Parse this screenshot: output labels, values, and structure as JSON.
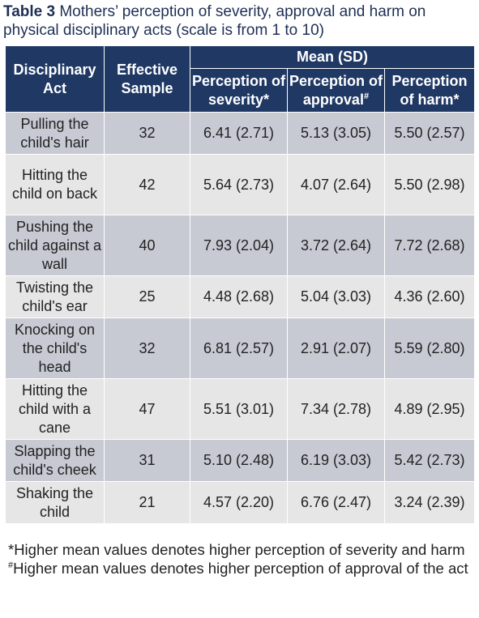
{
  "caption": {
    "label": "Table 3",
    "text": " Mothers’ perception of severity, approval and harm on physical disciplinary acts (scale is from 1 to 10)"
  },
  "header": {
    "act": "Disciplinary Act",
    "sample": "Effective Sample",
    "group": "Mean (SD)",
    "severity": "Perception of severity",
    "severity_mark": "*",
    "approval": "Perception of approval",
    "approval_mark": "#",
    "harm": "Perception of harm",
    "harm_mark": "*"
  },
  "rows": [
    {
      "act": "Pulling the child's hair",
      "n": "32",
      "severity": "6.41 (2.71)",
      "approval": "5.13  (3.05)",
      "harm": "5.50 (2.57)"
    },
    {
      "act": "Hitting the child on back",
      "n": "42",
      "severity": "5.64  (2.73)",
      "approval": "4.07  (2.64)",
      "harm": "5.50 (2.98)"
    },
    {
      "act": "Pushing the child against a wall",
      "n": "40",
      "severity": "7.93 (2.04)",
      "approval": "3.72  (2.64)",
      "harm": "7.72 (2.68)"
    },
    {
      "act": "Twisting the child's ear",
      "n": "25",
      "severity": "4.48 (2.68)",
      "approval": "5.04  (3.03)",
      "harm": "4.36 (2.60)"
    },
    {
      "act": "Knocking on the child's head",
      "n": "32",
      "severity": "6.81 (2.57)",
      "approval": "2.91  (2.07)",
      "harm": "5.59 (2.80)"
    },
    {
      "act": "Hitting the child with a cane",
      "n": "47",
      "severity": "5.51 (3.01)",
      "approval": "7.34  (2.78)",
      "harm": "4.89 (2.95)"
    },
    {
      "act": "Slapping the child's cheek",
      "n": "31",
      "severity": "5.10 (2.48)",
      "approval": "6.19  (3.03)",
      "harm": "5.42 (2.73)"
    },
    {
      "act": "Shaking the child",
      "n": "21",
      "severity": "4.57 (2.20)",
      "approval": "6.76  (2.47)",
      "harm": "3.24 (2.39)"
    }
  ],
  "notes": {
    "note1": "*Higher mean values denotes higher perception of severity and harm",
    "note2_mark": "#",
    "note2": "Higher mean values denotes higher perception of approval of the act"
  }
}
